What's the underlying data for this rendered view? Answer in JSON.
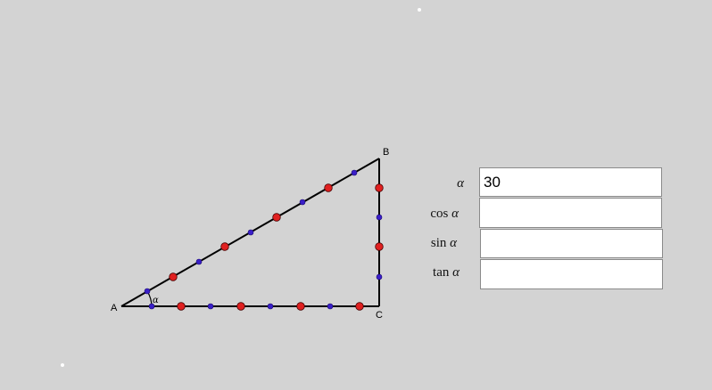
{
  "triangle": {
    "vertices": {
      "A": "A",
      "B": "B",
      "C": "C"
    },
    "angle_symbol": "α"
  },
  "form": {
    "alpha": {
      "label": "α",
      "value": "30"
    },
    "cos": {
      "func": "cos",
      "symbol": "α",
      "value": ""
    },
    "sin": {
      "func": "sin",
      "symbol": "α",
      "value": ""
    },
    "tan": {
      "func": "tan",
      "symbol": "α",
      "value": ""
    }
  },
  "colors": {
    "background": "#d3d3d3",
    "segment": "#000000",
    "large_point": "#e02020",
    "small_point": "#3a1fc8"
  }
}
